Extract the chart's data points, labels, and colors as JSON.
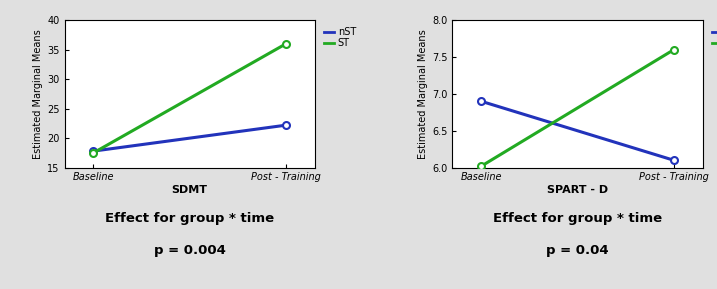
{
  "plot1": {
    "nST": {
      "baseline": 17.8,
      "post": 22.2
    },
    "ST": {
      "baseline": 17.5,
      "post": 36.0
    },
    "ylim": [
      15,
      40
    ],
    "yticks": [
      15,
      20,
      25,
      30,
      35,
      40
    ],
    "xlabel": "SDMT",
    "effect_line1": "Effect for group * time",
    "effect_line2": "p = 0.004"
  },
  "plot2": {
    "nST": {
      "baseline": 6.9,
      "post": 6.1
    },
    "ST": {
      "baseline": 6.02,
      "post": 7.6
    },
    "ylim": [
      6.0,
      8.0
    ],
    "yticks": [
      6.0,
      6.5,
      7.0,
      7.5,
      8.0
    ],
    "xlabel": "SPART - D",
    "effect_line1": "Effect for group * time",
    "effect_line2": "p = 0.04"
  },
  "xticklabels": [
    "Baseline",
    "Post - Training"
  ],
  "ylabel": "Estimated Marginal Means",
  "color_nST": "#2233bb",
  "color_ST": "#22aa22",
  "marker": "o",
  "markersize": 5,
  "linewidth": 2.2,
  "bg_color": "#e0e0e0"
}
